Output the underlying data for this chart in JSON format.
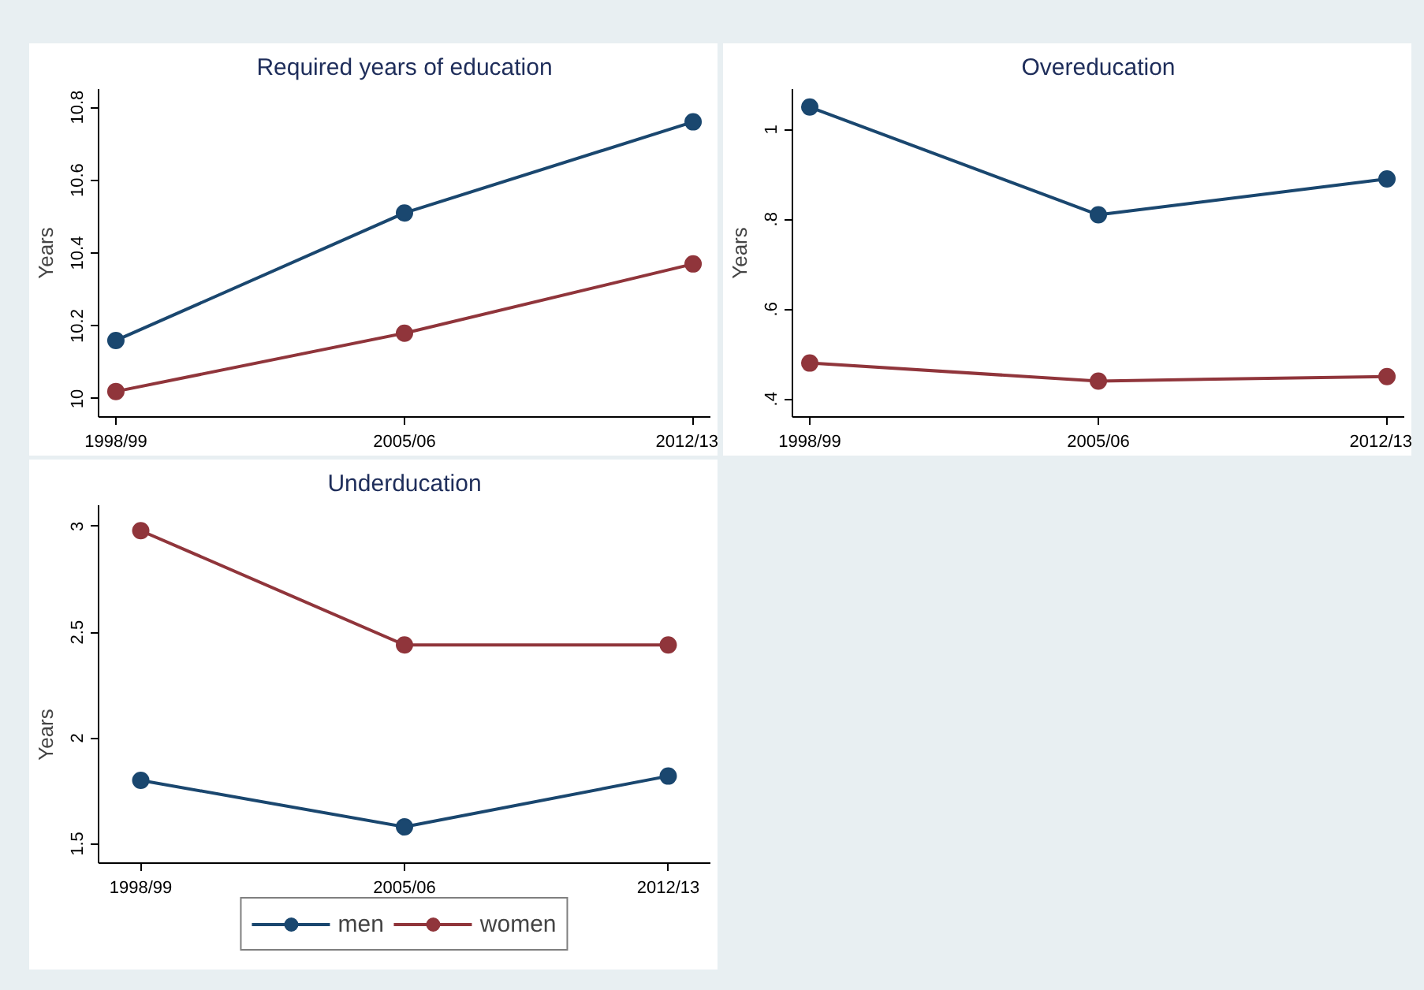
{
  "chart_data": [
    {
      "type": "line",
      "title": "Required years of education",
      "ylabel": "Years",
      "categories": [
        "1998/99",
        "2005/06",
        "2012/13"
      ],
      "marker": "circle",
      "series": [
        {
          "color": "#1a476f",
          "values": [
            10.16,
            10.51,
            10.76
          ]
        },
        {
          "color": "#90353b",
          "values": [
            10.02,
            10.18,
            10.37
          ]
        }
      ],
      "ylim": [
        9.95,
        10.85
      ],
      "yticks": [
        10,
        10.2,
        10.4,
        10.6,
        10.8
      ]
    },
    {
      "type": "line",
      "title": "Overeducation",
      "ylabel": "Years",
      "categories": [
        "1998/99",
        "2005/06",
        "2012/13"
      ],
      "marker": "circle",
      "series": [
        {
          "color": "#1a476f",
          "values": [
            1.05,
            0.81,
            0.89
          ]
        },
        {
          "color": "#90353b",
          "values": [
            0.48,
            0.44,
            0.45
          ]
        }
      ],
      "ylim": [
        0.36,
        1.09
      ],
      "yticks": [
        {
          "value": 0.4,
          "label": ".4"
        },
        {
          "value": 0.6,
          "label": ".6"
        },
        {
          "value": 0.8,
          "label": ".8"
        },
        1
      ]
    },
    {
      "type": "line",
      "title": "Underducation",
      "ylabel": "Years",
      "categories": [
        "1998/99",
        "2005/06",
        "2012/13"
      ],
      "marker": "circle",
      "legend": "bottom",
      "series": [
        {
          "name": "men",
          "color": "#1a476f",
          "values": [
            1.8,
            1.58,
            1.82
          ]
        },
        {
          "name": "women",
          "color": "#90353b",
          "values": [
            2.98,
            2.44,
            2.44
          ]
        }
      ],
      "ylim": [
        1.41,
        3.1
      ],
      "yticks": [
        1.5,
        2,
        2.5,
        3
      ]
    }
  ]
}
